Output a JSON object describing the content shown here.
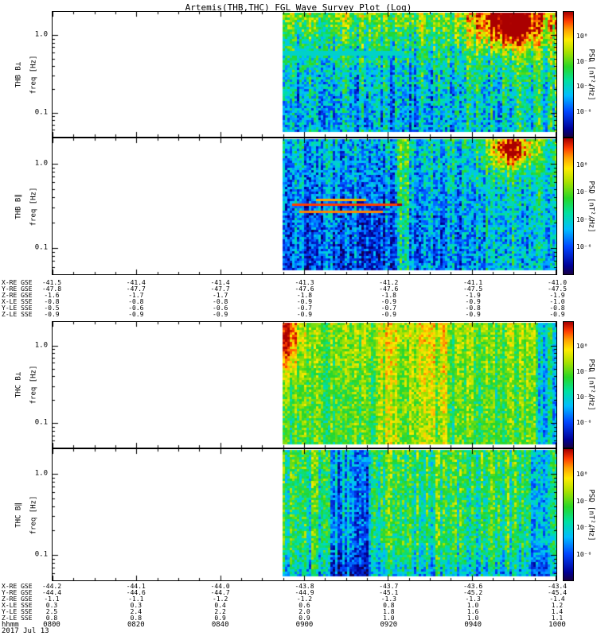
{
  "chart_data": {
    "type": "heatmap",
    "title": "Artemis(THB,THC) FGL Wave Survey Plot (Log)",
    "date": "2017 Jul 13",
    "xlabel": "hhmm",
    "x_ticks": [
      "0800",
      "0820",
      "0840",
      "0900",
      "0920",
      "0940",
      "1000"
    ],
    "x_range": [
      "0800",
      "1000"
    ],
    "x_minor_tick_minutes": 5,
    "data_start": "~0856; all four spectrograms are blank (white) before this time",
    "panels": [
      {
        "name": "THB B⊥",
        "slug": "thb-bperp",
        "ylabel": "freq [Hz]",
        "y_scale": "log",
        "y_range_hz": [
          0.05,
          2.0
        ],
        "y_ticks": [
          "1.0",
          "0.1"
        ],
        "colorbar_label": "PSD [nT²/Hz]",
        "colorbar_ticks": [
          "10⁰",
          "10⁻²",
          "10⁻⁴",
          "10⁻⁶"
        ],
        "description": "Blue/cyan broadband PSD with green speckle; greener-yellow above ~0.5 Hz; pale cyan band near 0.4 Hz from data start to ~0925; intense red-orange burst near 0940-0950 at 1-2 Hz; right third generally greener",
        "render": {
          "seed": 11,
          "startFrac": 0.4566,
          "base": 0.32,
          "colVar": 0.14,
          "noise": 0.17,
          "topBoost": 0.3,
          "rightBoost": 0.1,
          "rightFrom": 0.45,
          "features": [
            {
              "type": "blob",
              "cx": 0.83,
              "cy": 0.08,
              "rx": 0.11,
              "ry": 0.2,
              "amp": 0.62
            },
            {
              "type": "hband",
              "cy": 0.33,
              "hh": 0.022,
              "x0": 0.0,
              "x1": 0.44,
              "set": 0.4
            }
          ]
        }
      },
      {
        "name": "THB B∥",
        "slug": "thb-bpar",
        "ylabel": "freq [Hz]",
        "y_scale": "log",
        "y_range_hz": [
          0.05,
          2.0
        ],
        "y_ticks": [
          "1.0",
          "0.1"
        ],
        "colorbar_label": "PSD [nT²/Hz]",
        "colorbar_ticks": [
          "10⁰",
          "10⁻²",
          "10⁻⁴",
          "10⁻⁶"
        ],
        "description": "Mostly dark-blue PSD before ~0920 with narrow red horizontal streaks near 0.3-0.5 Hz; greener/cyan after 0920; orange-red burst near 0945 at 1-2 Hz",
        "render": {
          "seed": 22,
          "startFrac": 0.4566,
          "base": 0.23,
          "colVar": 0.12,
          "noise": 0.16,
          "topBoost": 0.16,
          "rightBoost": 0.16,
          "rightFrom": 0.42,
          "features": [
            {
              "type": "blob",
              "cx": 0.835,
              "cy": 0.07,
              "rx": 0.075,
              "ry": 0.14,
              "amp": 0.58
            },
            {
              "type": "hband",
              "cy": 0.5,
              "hh": 0.013,
              "x0": 0.03,
              "x1": 0.43,
              "set": 0.93
            },
            {
              "type": "hband",
              "cy": 0.55,
              "hh": 0.01,
              "x0": 0.06,
              "x1": 0.36,
              "set": 0.88
            },
            {
              "type": "hband",
              "cy": 0.46,
              "hh": 0.009,
              "x0": 0.12,
              "x1": 0.3,
              "set": 0.85
            },
            {
              "type": "vband",
              "x0": 0.42,
              "x1": 0.46,
              "add": 0.22
            }
          ]
        }
      },
      {
        "name": "THC B⊥",
        "slug": "thc-bperp",
        "ylabel": "freq [Hz]",
        "y_scale": "log",
        "y_range_hz": [
          0.05,
          2.0
        ],
        "y_ticks": [
          "1.0",
          "0.1"
        ],
        "colorbar_label": "PSD [nT²/Hz]",
        "colorbar_ticks": [
          "10⁰",
          "10⁻²",
          "10⁻⁴",
          "10⁻⁶"
        ],
        "description": "Bright green-yellow broadband PSD across whole data interval; red-orange enhancement right at data start; brightest yellow columns mid-interval; cooler cyan-blue columns at far right",
        "render": {
          "seed": 33,
          "startFrac": 0.4566,
          "base": 0.56,
          "colVar": 0.1,
          "noise": 0.12,
          "topBoost": 0.08,
          "features": [
            {
              "type": "blob",
              "cx": 0.012,
              "cy": 0.12,
              "rx": 0.035,
              "ry": 0.3,
              "amp": 0.4
            },
            {
              "type": "vband",
              "x0": 0.34,
              "x1": 0.62,
              "add": 0.09
            },
            {
              "type": "vband",
              "x0": 0.93,
              "x1": 1.0,
              "add": -0.2
            }
          ]
        }
      },
      {
        "name": "THC B∥",
        "slug": "thc-bpar",
        "ylabel": "freq [Hz]",
        "y_scale": "log",
        "y_range_hz": [
          0.05,
          2.0
        ],
        "y_ticks": [
          "1.0",
          "0.1"
        ],
        "colorbar_label": "PSD [nT²/Hz]",
        "colorbar_ticks": [
          "10⁰",
          "10⁻²",
          "10⁻⁴",
          "10⁻⁶"
        ],
        "description": "Green/cyan broadband PSD; distinct cluster of blue columns ~0905-0915; bluer bottom rows and slightly bluer right edge",
        "render": {
          "seed": 44,
          "startFrac": 0.4566,
          "base": 0.5,
          "colVar": 0.13,
          "noise": 0.14,
          "topBoost": 0.05,
          "bottomCool": {
            "from": 0.75,
            "amp": -0.14
          },
          "features": [
            {
              "type": "vband",
              "x0": 0.17,
              "x1": 0.32,
              "add": -0.24
            },
            {
              "type": "vband",
              "x0": 0.9,
              "x1": 1.0,
              "add": -0.12
            }
          ]
        }
      }
    ],
    "ephemeris_thb": {
      "rows": [
        {
          "label": "X-RE GSE",
          "values": [
            "-41.5",
            "-41.4",
            "-41.4",
            "-41.3",
            "-41.2",
            "-41.1",
            "-41.0"
          ]
        },
        {
          "label": "Y-RE GSE",
          "values": [
            "-47.8",
            "-47.7",
            "-47.7",
            "-47.6",
            "-47.6",
            "-47.5",
            "-47.5"
          ]
        },
        {
          "label": "Z-RE GSE",
          "values": [
            "-1.6",
            "-1.7",
            "-1.7",
            "-1.8",
            "-1.8",
            "-1.9",
            "-1.9"
          ]
        },
        {
          "label": "X-LE SSE",
          "values": [
            "-0.8",
            "-0.8",
            "-0.8",
            "-0.9",
            "-0.9",
            "-0.9",
            "-1.0"
          ]
        },
        {
          "label": "Y-LE SSE",
          "values": [
            "-0.5",
            "-0.6",
            "-0.6",
            "-0.7",
            "-0.7",
            "-0.8",
            "-0.8"
          ]
        },
        {
          "label": "Z-LE SSE",
          "values": [
            "-0.9",
            "-0.9",
            "-0.9",
            "-0.9",
            "-0.9",
            "-0.9",
            "-0.9"
          ]
        }
      ]
    },
    "ephemeris_thc": {
      "rows": [
        {
          "label": "X-RE GSE",
          "values": [
            "-44.2",
            "-44.1",
            "-44.0",
            "-43.8",
            "-43.7",
            "-43.6",
            "-43.4"
          ]
        },
        {
          "label": "Y-RE GSE",
          "values": [
            "-44.4",
            "-44.6",
            "-44.7",
            "-44.9",
            "-45.1",
            "-45.2",
            "-45.4"
          ]
        },
        {
          "label": "Z-RE GSE",
          "values": [
            "-1.1",
            "-1.1",
            "-1.2",
            "-1.2",
            "-1.3",
            "-1.3",
            "-1.4"
          ]
        },
        {
          "label": "X-LE SSE",
          "values": [
            "0.3",
            "0.3",
            "0.4",
            "0.6",
            "0.8",
            "1.0",
            "1.2"
          ]
        },
        {
          "label": "Y-LE SSE",
          "values": [
            "2.5",
            "2.4",
            "2.2",
            "2.0",
            "1.8",
            "1.6",
            "1.4"
          ]
        },
        {
          "label": "Z-LE SSE",
          "values": [
            "0.8",
            "0.8",
            "0.9",
            "0.9",
            "1.0",
            "1.0",
            "1.1"
          ]
        }
      ]
    }
  }
}
